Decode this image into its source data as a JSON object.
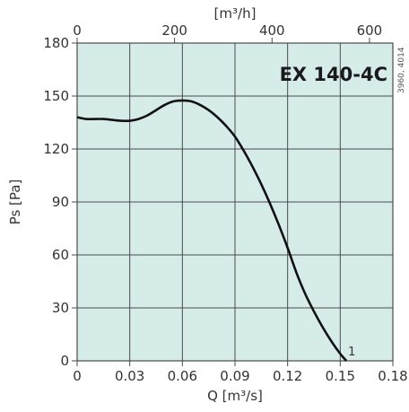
{
  "chart_data": {
    "type": "line",
    "title": "EX 140-4C",
    "side_code": "3960, 4014",
    "xlabel": "Q [m³/s]",
    "ylabel": "Ps [Pa]",
    "x2label": "[m³/h]",
    "xlim": [
      0,
      0.18
    ],
    "ylim": [
      0,
      180
    ],
    "x2lim": [
      0,
      648
    ],
    "x_ticks": [
      0,
      0.03,
      0.06,
      0.09,
      0.12,
      0.15,
      0.18
    ],
    "x_tick_labels": [
      "0",
      "0.03",
      "0.06",
      "0.09",
      "0.12",
      "0.15",
      "0.18"
    ],
    "y_ticks": [
      0,
      30,
      60,
      90,
      120,
      150,
      180
    ],
    "y_tick_labels": [
      "0",
      "30",
      "60",
      "90",
      "120",
      "150",
      "180"
    ],
    "x2_ticks": [
      0,
      200,
      400,
      600
    ],
    "x2_tick_labels": [
      "0",
      "200",
      "400",
      "600"
    ],
    "grid": true,
    "series": [
      {
        "name": "1",
        "x": [
          0,
          0.005,
          0.01,
          0.015,
          0.02,
          0.025,
          0.03,
          0.035,
          0.04,
          0.045,
          0.05,
          0.055,
          0.06,
          0.065,
          0.07,
          0.075,
          0.08,
          0.085,
          0.09,
          0.095,
          0.1,
          0.105,
          0.11,
          0.115,
          0.12,
          0.125,
          0.13,
          0.135,
          0.14,
          0.145,
          0.15,
          0.1535
        ],
        "y": [
          138,
          137,
          137,
          137,
          136.5,
          136,
          136,
          137,
          139,
          142,
          145,
          147,
          147.5,
          147,
          145,
          142,
          138,
          133,
          127,
          119,
          110,
          100,
          89,
          77,
          64,
          50,
          38,
          28,
          19,
          11,
          4,
          0
        ]
      }
    ]
  },
  "colors": {
    "plot_bg": "#d6ece9",
    "grid": "#4a4a4a",
    "curve": "#111111",
    "text": "#333333"
  }
}
